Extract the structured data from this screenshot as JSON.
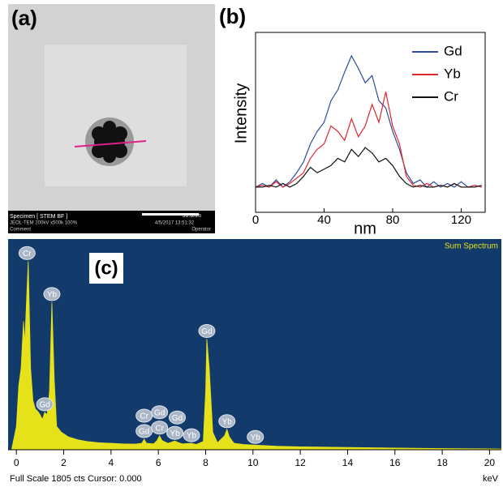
{
  "panel_a": {
    "label": "(a)",
    "scale_bar": "50.0nm",
    "info_left": [
      "Specimen [ STEM BF ]",
      "JEOL-TEM 200kV x500k 100%",
      "Comment"
    ],
    "info_right": [
      "4/5/2017 13:51:32",
      "Operator"
    ]
  },
  "chart_data": [
    {
      "type": "line",
      "panel_label": "(b)",
      "x_label": "nm",
      "y_label": "Intensity",
      "x": [
        0,
        4,
        8,
        12,
        16,
        20,
        24,
        28,
        32,
        36,
        40,
        44,
        48,
        52,
        56,
        60,
        64,
        68,
        72,
        76,
        80,
        84,
        88,
        92,
        96,
        100,
        104,
        108,
        112,
        116,
        120,
        124,
        128,
        132
      ],
      "series": [
        {
          "name": "Gd",
          "color": "#2b4c9b",
          "values": [
            14,
            16,
            14,
            18,
            14,
            17,
            22,
            28,
            38,
            45,
            50,
            62,
            68,
            78,
            87,
            80,
            72,
            76,
            62,
            58,
            45,
            35,
            22,
            16,
            18,
            14,
            17,
            14,
            16,
            14,
            17,
            14,
            15,
            14
          ]
        },
        {
          "name": "Yb",
          "color": "#e0262e",
          "values": [
            14,
            15,
            14,
            17,
            14,
            16,
            19,
            22,
            30,
            35,
            38,
            48,
            45,
            40,
            52,
            42,
            48,
            60,
            50,
            67,
            48,
            38,
            20,
            15,
            14,
            16,
            14,
            15,
            14,
            16,
            14,
            14,
            15,
            14
          ]
        },
        {
          "name": "Cr",
          "color": "#111111",
          "values": [
            14,
            14,
            15,
            14,
            16,
            14,
            16,
            20,
            25,
            22,
            24,
            26,
            30,
            28,
            35,
            31,
            36,
            33,
            28,
            30,
            26,
            20,
            16,
            14,
            15,
            14,
            14,
            15,
            14,
            16,
            14,
            14,
            14,
            15
          ]
        }
      ],
      "xlim": [
        0,
        134
      ],
      "ylim": [
        0,
        100
      ],
      "xticks": [
        0,
        40,
        80,
        120
      ],
      "legend": "upper right"
    },
    {
      "type": "area",
      "panel_label": "(c)",
      "corner_title": "Sum Spectrum",
      "x_label": "keV",
      "status": "Full Scale 1805 cts Cursor: 0.000",
      "color": "#e6e21a",
      "background": "#123a6b",
      "x": [
        -0.2,
        0,
        0.1,
        0.2,
        0.3,
        0.35,
        0.5,
        0.6,
        0.7,
        0.8,
        0.9,
        1.0,
        1.1,
        1.2,
        1.3,
        1.4,
        1.5,
        1.6,
        1.7,
        1.9,
        2.2,
        2.6,
        3.0,
        3.5,
        4.0,
        4.5,
        5.0,
        5.3,
        5.4,
        5.5,
        5.8,
        5.95,
        6.05,
        6.15,
        6.4,
        6.7,
        6.8,
        7.0,
        7.4,
        7.6,
        7.9,
        8.0,
        8.05,
        8.15,
        8.3,
        8.5,
        8.8,
        8.9,
        9.0,
        9.2,
        9.6,
        10.1,
        10.5,
        11,
        12,
        14,
        16,
        18,
        20,
        20.5
      ],
      "values": [
        0,
        200,
        550,
        700,
        1100,
        900,
        1615,
        700,
        420,
        350,
        330,
        300,
        260,
        320,
        300,
        500,
        1264,
        600,
        200,
        150,
        110,
        85,
        70,
        60,
        55,
        50,
        48,
        55,
        90,
        55,
        50,
        80,
        120,
        80,
        55,
        75,
        65,
        50,
        55,
        45,
        70,
        500,
        948,
        700,
        150,
        60,
        120,
        175,
        110,
        55,
        45,
        40,
        35,
        30,
        25,
        20,
        15,
        10,
        8,
        6
      ],
      "xlim": [
        -0.35,
        20.5
      ],
      "ylim": [
        0,
        1805
      ],
      "xticks": [
        0,
        2,
        4,
        6,
        8,
        10,
        12,
        14,
        16,
        18,
        20
      ],
      "annotations": [
        {
          "text": "Cr",
          "x": 0.45
        },
        {
          "text": "Yb",
          "x": 1.5
        },
        {
          "text": "Gd",
          "x": 1.2
        },
        {
          "text": "Gd",
          "x": 5.4
        },
        {
          "text": "Cr",
          "x": 5.4
        },
        {
          "text": "Cr",
          "x": 6.05
        },
        {
          "text": "Gd",
          "x": 6.05
        },
        {
          "text": "Yb",
          "x": 6.7
        },
        {
          "text": "Gd",
          "x": 6.8
        },
        {
          "text": "Yb",
          "x": 7.4
        },
        {
          "text": "Gd",
          "x": 8.05
        },
        {
          "text": "Yb",
          "x": 8.9
        },
        {
          "text": "Yb",
          "x": 10.1
        }
      ]
    }
  ]
}
